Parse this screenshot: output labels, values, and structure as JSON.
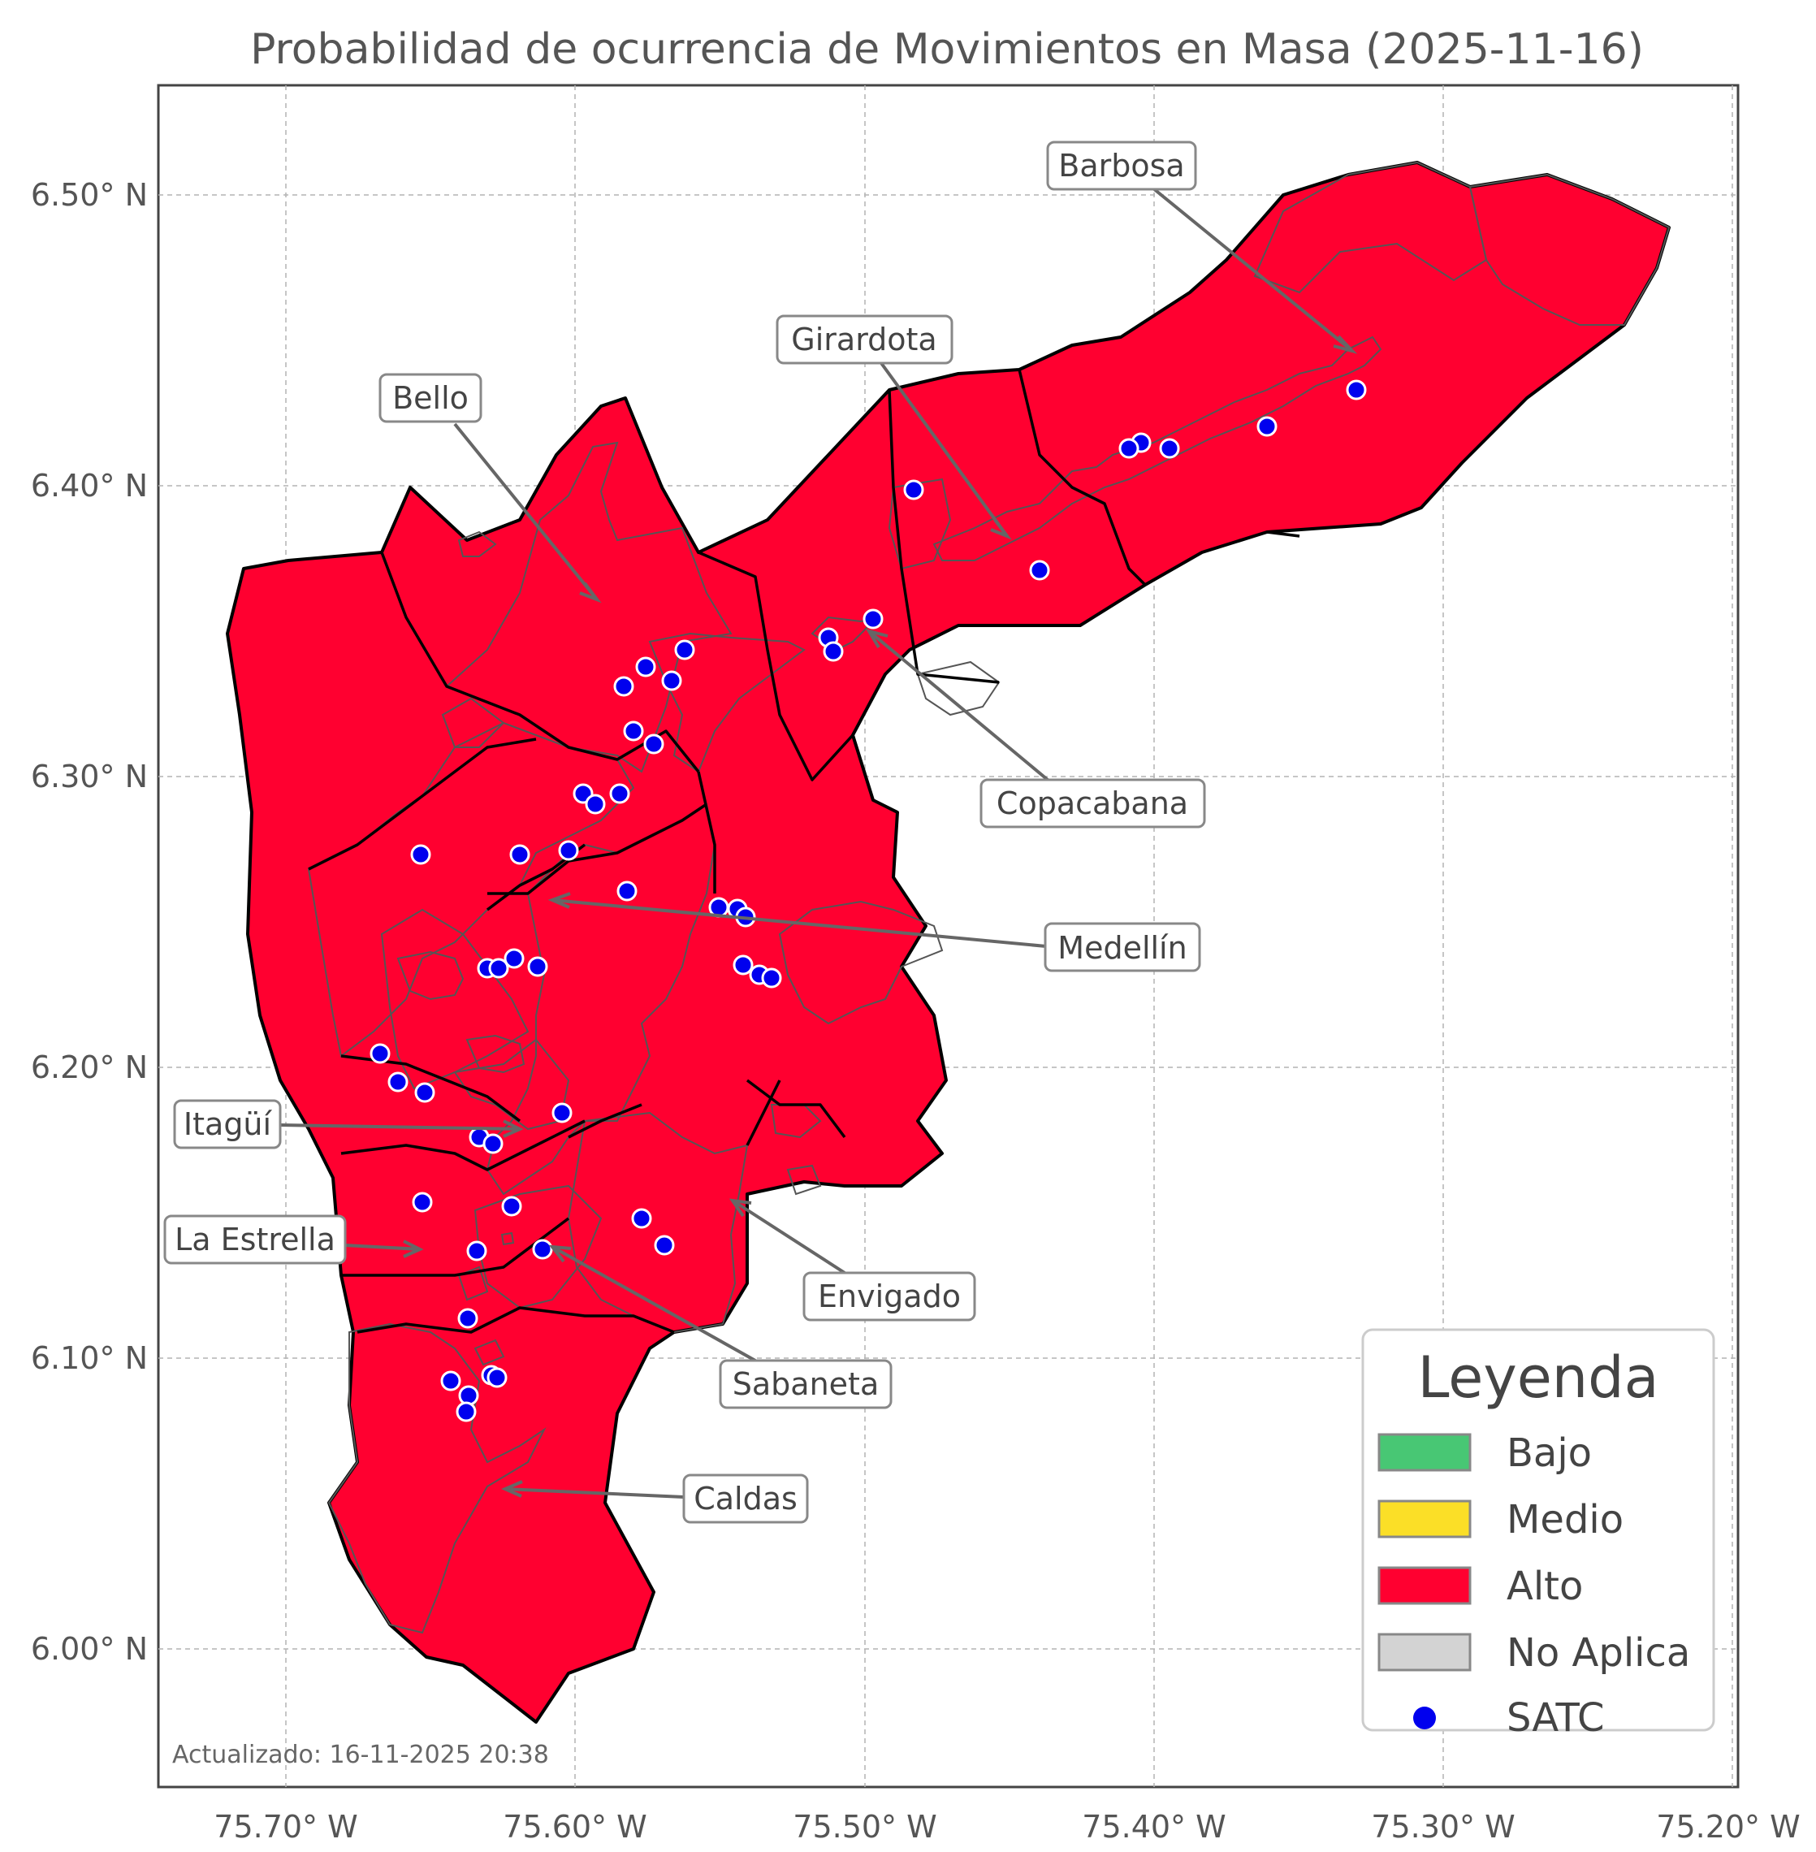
{
  "title": "Probabilidad de ocurrencia de Movimientos en Masa (2025-11-16)",
  "axes": {
    "x_ticks": [
      "75.70° W",
      "75.60° W",
      "75.50° W",
      "75.40° W",
      "75.30° W",
      "75.20° W"
    ],
    "y_ticks": [
      "6.50° N",
      "6.40° N",
      "6.30° N",
      "6.20° N",
      "6.10° N",
      "6.00° N"
    ],
    "grid": true
  },
  "colors": {
    "bajo": "#48C774",
    "medio": "#FBDF27",
    "alto": "#FF0030",
    "no_aplica": "#D3D3D3",
    "satc": "#0000EE"
  },
  "municipalities": {
    "barbosa": "Barbosa",
    "girardota": "Girardota",
    "bello": "Bello",
    "copacabana": "Copacabana",
    "medellin": "Medellín",
    "itagui": "Itagüí",
    "la_estrella": "La Estrella",
    "envigado": "Envigado",
    "sabaneta": "Sabaneta",
    "caldas": "Caldas"
  },
  "legend": {
    "title": "Leyenda",
    "items": {
      "bajo": "Bajo",
      "medio": "Medio",
      "alto": "Alto",
      "no_aplica": "No Aplica",
      "satc": "SATC"
    }
  },
  "updated": "Actualizado: 16-11-2025 20:38"
}
